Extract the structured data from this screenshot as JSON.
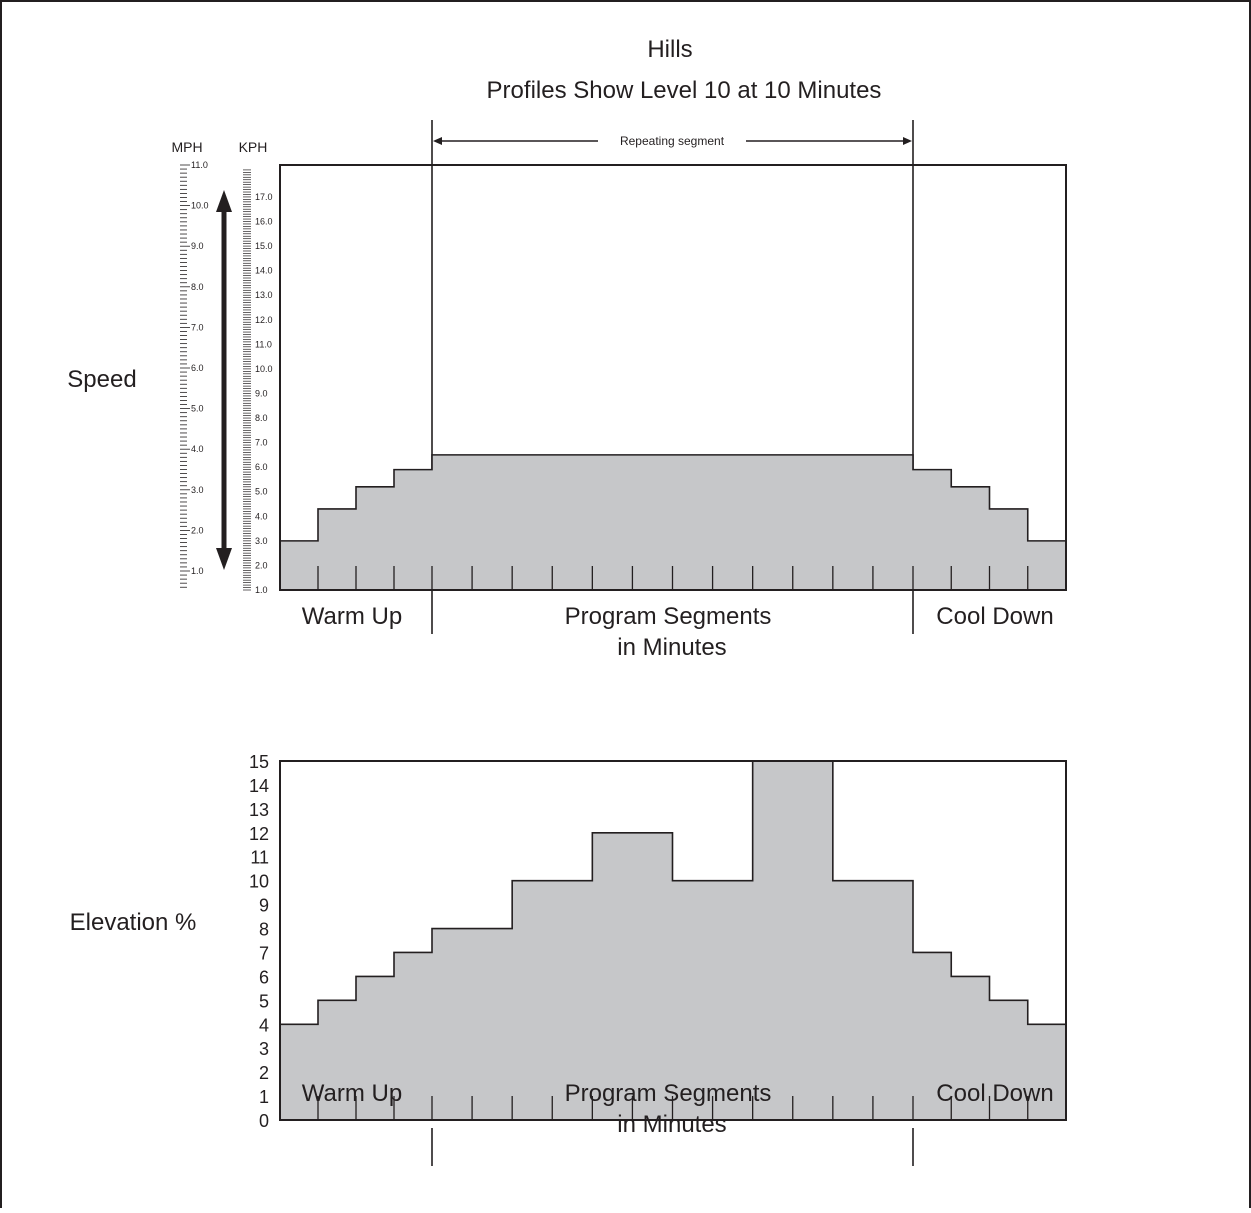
{
  "title": "Hills",
  "subtitle": "Profiles Show Level 10 at 10 Minutes",
  "repeat_label": "Repeating segment",
  "colors": {
    "fill": "#c6c7c9",
    "line": "#231f20",
    "background": "#ffffff"
  },
  "chart_data": [
    {
      "type": "area",
      "ylabel": "Speed",
      "unit_left": "MPH",
      "unit_right": "KPH",
      "mph_ticks": [
        "11.0",
        "10.0",
        "9.0",
        "8.0",
        "7.0",
        "6.0",
        "5.0",
        "4.0",
        "3.0",
        "2.0",
        "1.0"
      ],
      "kph_ticks": [
        "17.0",
        "16.0",
        "15.0",
        "14.0",
        "13.0",
        "12.0",
        "11.0",
        "10.0",
        "9.0",
        "8.0",
        "7.0",
        "6.0",
        "5.0",
        "4.0",
        "3.0",
        "2.0",
        "1.0"
      ],
      "kph_range": [
        1,
        18.3
      ],
      "x_segments": 19,
      "values_kph": [
        3.0,
        4.3,
        5.2,
        5.9,
        6.5,
        6.5,
        6.5,
        6.5,
        6.5,
        6.5,
        6.5,
        6.5,
        6.5,
        6.5,
        6.5,
        6.5,
        5.9,
        5.2,
        4.3,
        3.0
      ],
      "x_labels": {
        "warmup": "Warm Up",
        "program_line1": "Program Segments",
        "program_line2": "in Minutes",
        "cooldown": "Cool Down"
      }
    },
    {
      "type": "area",
      "ylabel": "Elevation %",
      "y_ticks": [
        "15",
        "14",
        "13",
        "12",
        "11",
        "10",
        "9",
        "8",
        "7",
        "6",
        "5",
        "4",
        "3",
        "2",
        "1",
        "0"
      ],
      "ylim": [
        0,
        15
      ],
      "x_segments": 19,
      "values": [
        4,
        5,
        6,
        7,
        8,
        8,
        10,
        10,
        12,
        12,
        10,
        10,
        15,
        15,
        10,
        10,
        7,
        6,
        5,
        4
      ],
      "x_labels": {
        "warmup": "Warm Up",
        "program_line1": "Program Segments",
        "program_line2": "in Minutes",
        "cooldown": "Cool Down"
      }
    }
  ]
}
